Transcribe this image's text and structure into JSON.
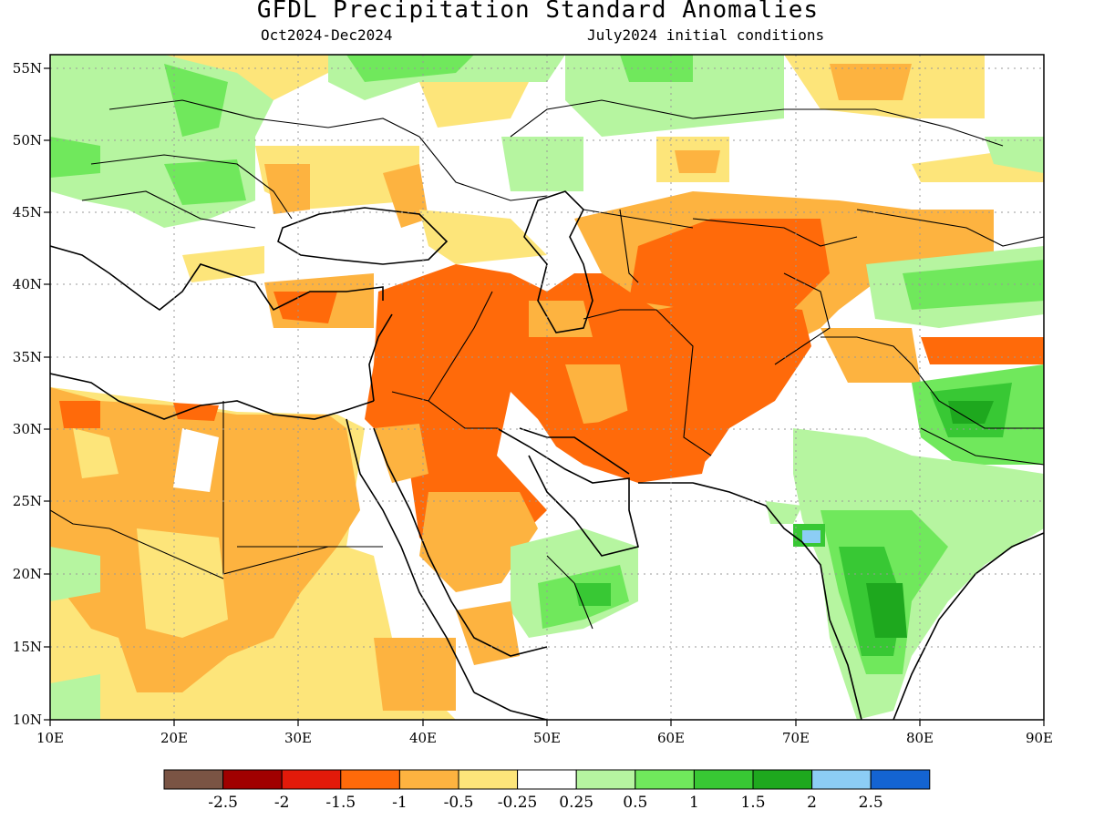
{
  "title": "GFDL Precipitation Standard Anomalies",
  "subtitle_period": "Oct2024-Dec2024",
  "subtitle_init": "July2024 initial conditions",
  "axes": {
    "lat_ticks": [
      "55N",
      "50N",
      "45N",
      "40N",
      "35N",
      "30N",
      "25N",
      "20N",
      "15N",
      "10N"
    ],
    "lon_ticks": [
      "10E",
      "20E",
      "30E",
      "40E",
      "50E",
      "60E",
      "70E",
      "80E",
      "90E"
    ],
    "lon_range": [
      10,
      90
    ],
    "lat_range": [
      10,
      56.5
    ],
    "grid": "dotted"
  },
  "colorbar": {
    "colors": [
      "#7a5444",
      "#a00000",
      "#e21a0a",
      "#ff6a0a",
      "#fdb340",
      "#fde57a",
      "#ffffff",
      "#b6f5a0",
      "#70e85c",
      "#38c834",
      "#1ea81e",
      "#8ccdf5",
      "#1464d2"
    ],
    "labels": [
      "-2.5",
      "-2",
      "-1.5",
      "-1",
      "-0.5",
      "-0.25",
      "0.25",
      "0.5",
      "1",
      "1.5",
      "2",
      "2.5"
    ]
  },
  "colors": {
    "dark_orange": "#ff6a0a",
    "light_orange": "#fdb340",
    "yellow": "#fde57a",
    "light_green": "#b6f5a0",
    "green": "#70e85c",
    "dark_green": "#1ea81e",
    "light_blue": "#8ccdf5"
  }
}
